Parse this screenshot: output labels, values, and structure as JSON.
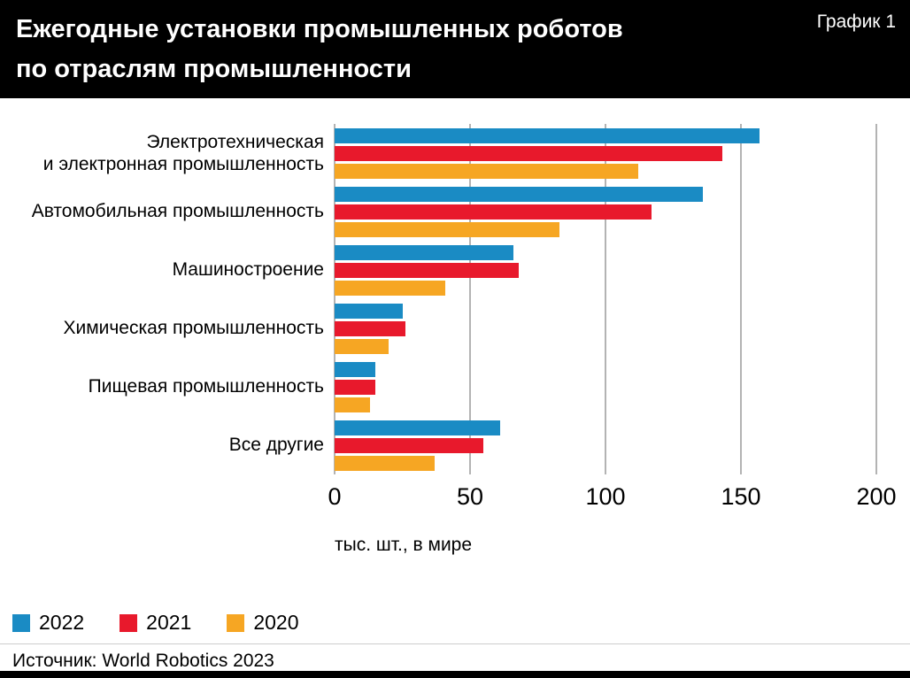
{
  "header": {
    "title_line1": "Ежегодные установки промышленных роботов",
    "title_line2": "по отраслям промышленности",
    "chart_tag": "График 1"
  },
  "chart_data": {
    "type": "bar",
    "orientation": "horizontal",
    "title": "Ежегодные установки промышленных роботов по отраслям промышленности",
    "categories": [
      "Электротехническая\nи электронная промышленность",
      "Автомобильная промышленность",
      "Машиностроение",
      "Химическая промышленность",
      "Пищевая промышленность",
      "Все другие"
    ],
    "series": [
      {
        "name": "2022",
        "color": "#1a8bc4",
        "values": [
          157,
          136,
          66,
          25,
          15,
          61
        ]
      },
      {
        "name": "2021",
        "color": "#e8192c",
        "values": [
          143,
          117,
          68,
          26,
          15,
          55
        ]
      },
      {
        "name": "2020",
        "color": "#f6a623",
        "values": [
          112,
          83,
          41,
          20,
          13,
          37
        ]
      }
    ],
    "xlabel": "тыс. шт., в мире",
    "xlim": [
      0,
      200
    ],
    "xticks": [
      0,
      50,
      100,
      150,
      200
    ],
    "grid": "vertical",
    "legend_position": "bottom-left"
  },
  "footer": {
    "source": "Источник: World Robotics 2023"
  }
}
